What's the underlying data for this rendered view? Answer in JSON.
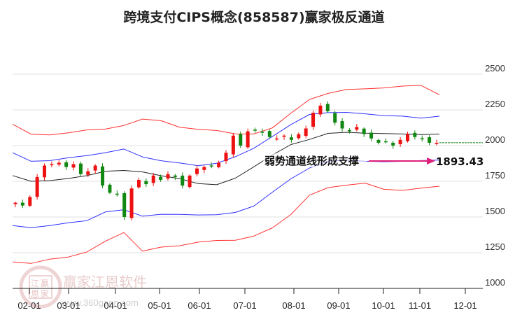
{
  "title": "跨境支付CIPS概念(858587)赢家极反通道",
  "chart_data": {
    "type": "candlestick",
    "title": "跨境支付CIPS概念(858587)赢家极反通道",
    "xlabel": "",
    "ylabel": "",
    "ylim": [
      1000,
      2500
    ],
    "yticks": [
      1000,
      1250,
      1500,
      1750,
      2000,
      2250,
      2500
    ],
    "xticks": [
      "02-01",
      "03-01",
      "04-01",
      "05-01",
      "06-01",
      "07-01",
      "08-01",
      "09-01",
      "10-01",
      "11-01",
      "12-01"
    ],
    "grid": true,
    "legend": "none",
    "annotation": {
      "text": "弱势通道线形成支撑",
      "value": "1893.43",
      "arrow_color": "#e0207a"
    },
    "last_close_line": 2020,
    "series": [
      {
        "name": "outer-upper-channel",
        "color": "#ff3030",
        "values_approx": [
          2150,
          2085,
          2080,
          2090,
          2105,
          2110,
          2140,
          2190,
          2180,
          2130,
          2110,
          2100,
          2080,
          2085,
          2130,
          2230,
          2320,
          2360,
          2390,
          2400,
          2410,
          2420,
          2420,
          2350
        ]
      },
      {
        "name": "inner-upper-channel",
        "color": "#3030ff",
        "values_approx": [
          1950,
          1895,
          1900,
          1915,
          1925,
          1945,
          1975,
          1925,
          1900,
          1880,
          1855,
          1870,
          1920,
          1985,
          2070,
          2150,
          2215,
          2225,
          2230,
          2225,
          2215,
          2210,
          2190,
          2200
        ]
      },
      {
        "name": "middle-line",
        "color": "#222222",
        "values_approx": [
          1790,
          1755,
          1760,
          1770,
          1785,
          1815,
          1825,
          1820,
          1795,
          1770,
          1730,
          1720,
          1770,
          1855,
          1940,
          2010,
          2040,
          2080,
          2090,
          2090,
          2090,
          2085,
          2075,
          2075
        ]
      },
      {
        "name": "inner-lower-channel",
        "color": "#3030ff",
        "values_approx": [
          1440,
          1430,
          1445,
          1460,
          1470,
          1530,
          1550,
          1510,
          1525,
          1520,
          1510,
          1510,
          1530,
          1580,
          1680,
          1770,
          1840,
          1885,
          1895,
          1893,
          1893,
          1893,
          1893,
          1893
        ]
      },
      {
        "name": "outer-lower-channel",
        "color": "#ff3030",
        "values_approx": [
          1185,
          1180,
          1210,
          1220,
          1250,
          1325,
          1390,
          1265,
          1295,
          1300,
          1320,
          1330,
          1335,
          1370,
          1430,
          1520,
          1650,
          1700,
          1720,
          1740,
          1700,
          1690,
          1700,
          1710
        ]
      }
    ],
    "candles_approx_close": [
      1600,
      1580,
      1640,
      1780,
      1860,
      1870,
      1880,
      1850,
      1870,
      1800,
      1820,
      1860,
      1720,
      1670,
      1660,
      1500,
      1700,
      1760,
      1730,
      1790,
      1760,
      1800,
      1780,
      1720,
      1790,
      1840,
      1850,
      1860,
      1880,
      1950,
      2070,
      2000,
      2100,
      2110,
      2090,
      2060,
      2050,
      2070,
      2040,
      2080,
      2120,
      2230,
      2280,
      2240,
      2160,
      2120,
      2100,
      2130,
      2080,
      2050,
      2020,
      2030,
      2000,
      2040,
      2080,
      2060,
      2050,
      2020,
      2020
    ]
  },
  "watermark": {
    "logo_chars": [
      "江",
      "赢",
      "恩",
      "家"
    ],
    "name": "赢家江恩软件",
    "url": "www.360gann.com"
  }
}
